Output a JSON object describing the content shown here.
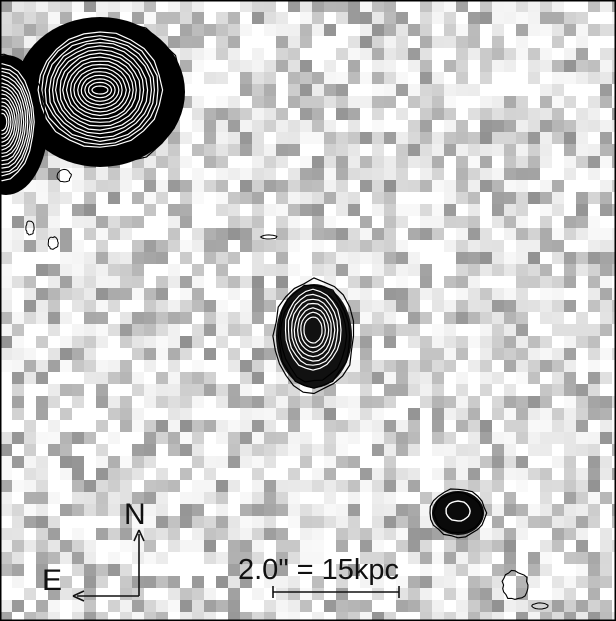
{
  "image": {
    "description_kind": "astronomical greyscale image with contour overlays",
    "background_color": "#ffffff",
    "frame_color": "#000000"
  },
  "compass": {
    "north_label": "N",
    "east_label": "E"
  },
  "scale_bar": {
    "label": "2.0\" = 15kpc"
  }
}
